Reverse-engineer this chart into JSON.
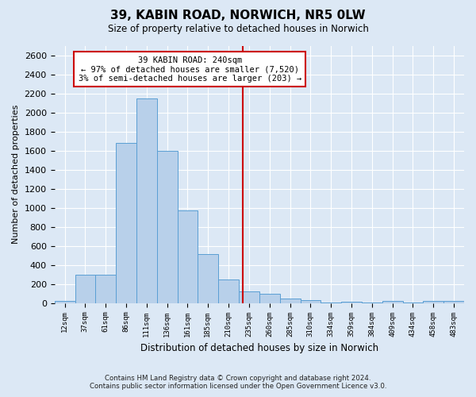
{
  "title": "39, KABIN ROAD, NORWICH, NR5 0LW",
  "subtitle": "Size of property relative to detached houses in Norwich",
  "xlabel": "Distribution of detached houses by size in Norwich",
  "ylabel": "Number of detached properties",
  "footer_line1": "Contains HM Land Registry data © Crown copyright and database right 2024.",
  "footer_line2": "Contains public sector information licensed under the Open Government Licence v3.0.",
  "property_label": "39 KABIN ROAD: 240sqm",
  "annotation_line1": "← 97% of detached houses are smaller (7,520)",
  "annotation_line2": "3% of semi-detached houses are larger (203) →",
  "property_size": 240,
  "bar_edges": [
    12,
    37,
    61,
    86,
    111,
    136,
    161,
    185,
    210,
    235,
    260,
    285,
    310,
    334,
    359,
    384,
    409,
    434,
    458,
    483,
    508
  ],
  "bar_heights": [
    20,
    300,
    300,
    1680,
    2150,
    1600,
    970,
    510,
    245,
    120,
    100,
    45,
    30,
    5,
    10,
    5,
    20,
    5,
    20,
    20
  ],
  "bar_color": "#b8d0ea",
  "bar_edge_color": "#5a9fd4",
  "vline_color": "#cc0000",
  "vline_x": 240,
  "annotation_box_edgecolor": "#cc0000",
  "ylim": [
    0,
    2700
  ],
  "yticks": [
    0,
    200,
    400,
    600,
    800,
    1000,
    1200,
    1400,
    1600,
    1800,
    2000,
    2200,
    2400,
    2600
  ],
  "bg_color": "#dce8f5",
  "plot_bg_color": "#dce8f5",
  "grid_color": "#ffffff"
}
